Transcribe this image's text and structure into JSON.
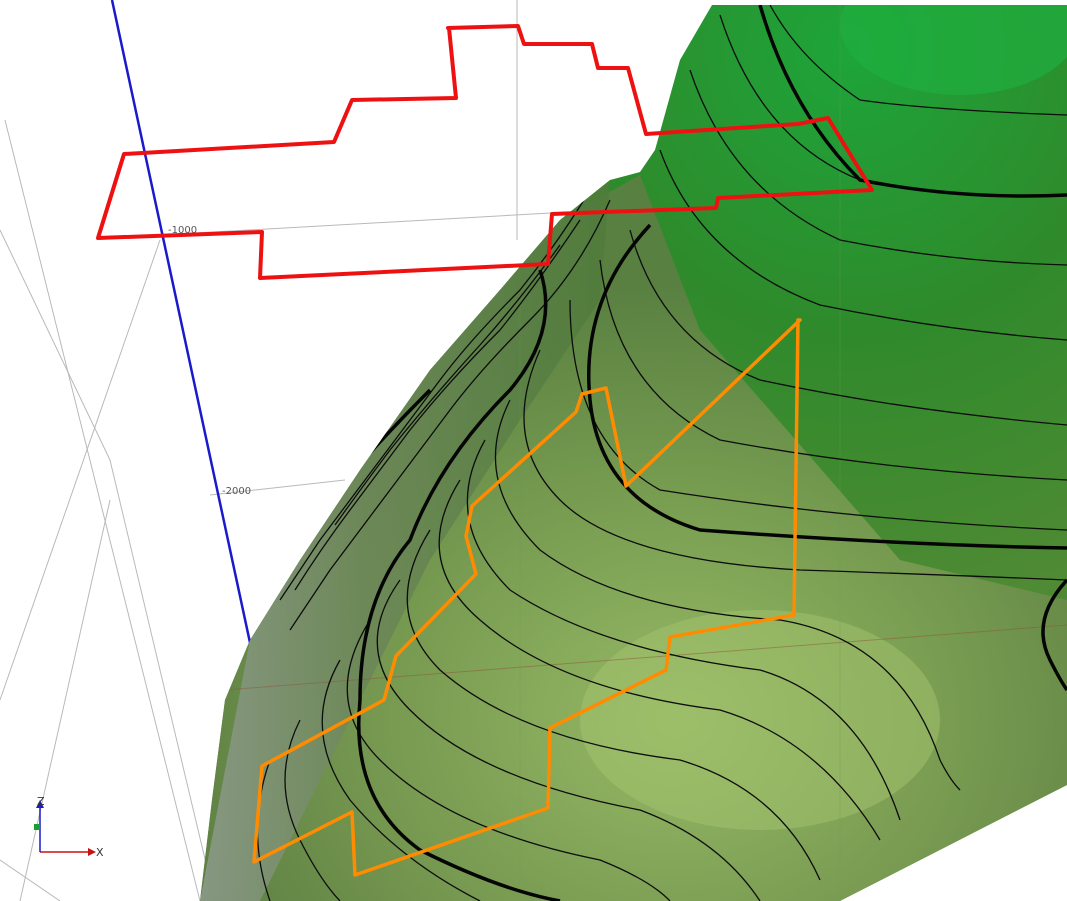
{
  "scene": {
    "title": "",
    "colors": {
      "background": "#ffffff",
      "grid_line": "#b9b9b9",
      "vertical_axis": "#1a1acc",
      "outline_red": "#ee1111",
      "outline_orange": "#ff8c00",
      "contour_line": "#0d0d0d",
      "terrain_dark": "#1b7a25",
      "terrain_light": "#a3c06b"
    },
    "grid_labels": {
      "label_1": "-1000",
      "label_2": "-2000"
    },
    "axis_triad": {
      "x_label": "X",
      "z_label": "Z"
    }
  }
}
